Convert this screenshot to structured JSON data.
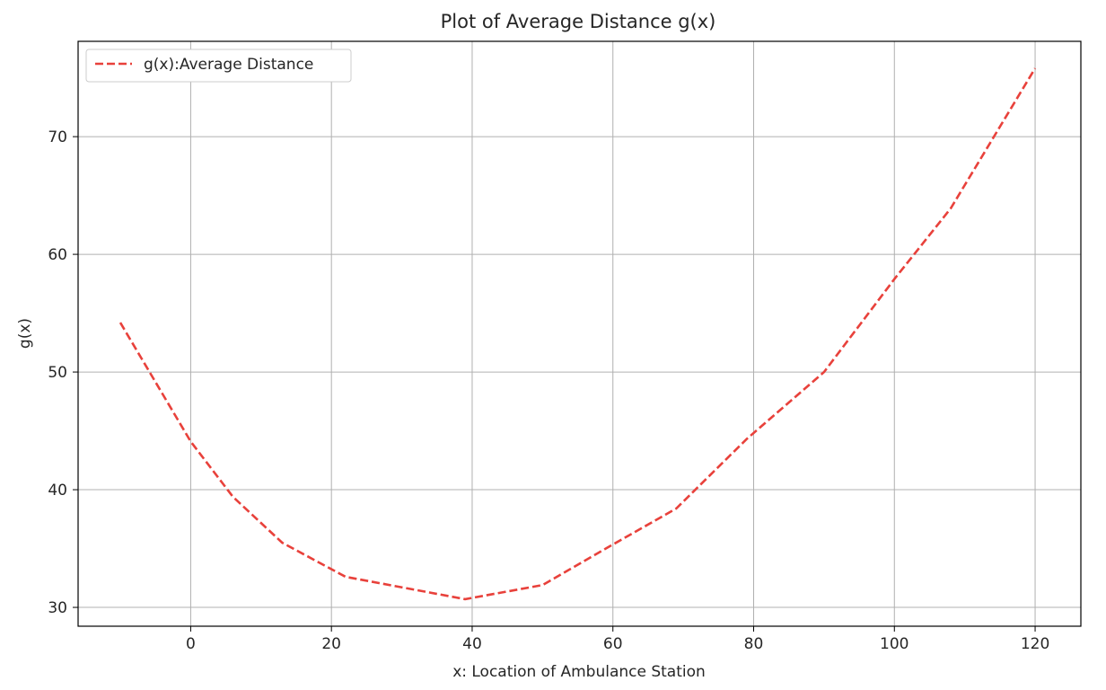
{
  "chart_data": {
    "type": "line",
    "title": "Plot of Average Distance g(x)",
    "xlabel": "x: Location of Ambulance Station",
    "ylabel": "g(x)",
    "xlim": [
      -16,
      126.5
    ],
    "ylim": [
      28.4,
      78.1
    ],
    "xticks": [
      0,
      20,
      40,
      60,
      80,
      100,
      120
    ],
    "yticks": [
      30,
      40,
      50,
      60,
      70
    ],
    "grid": true,
    "legend_position": "top-left",
    "series": [
      {
        "name": "g(x):Average Distance",
        "color": "#e8413b",
        "line_style": "dashed",
        "x": [
          -10,
          0,
          6,
          13,
          22,
          39,
          50,
          59,
          69,
          79,
          90,
          100,
          108,
          120
        ],
        "y": [
          54.2,
          44.1,
          39.4,
          35.5,
          32.6,
          30.7,
          31.9,
          35.0,
          38.4,
          44.3,
          50.0,
          57.9,
          63.9,
          75.8
        ]
      }
    ]
  }
}
